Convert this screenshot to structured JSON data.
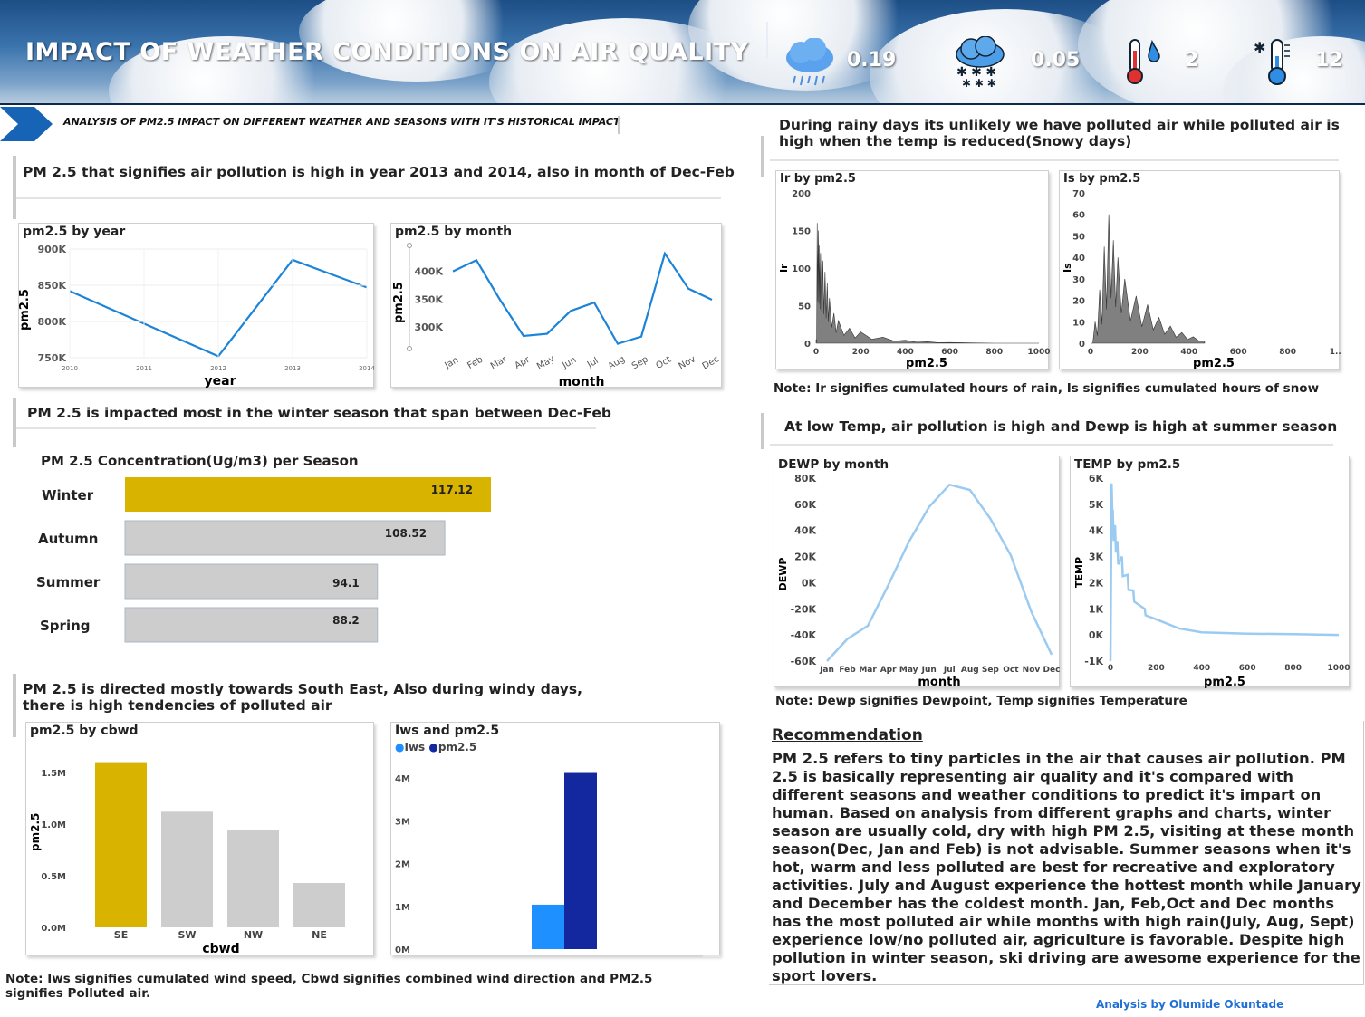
{
  "header": {
    "title": "IMPACT OF WEATHER CONDITIONS ON AIR QUALITY",
    "kpis": [
      {
        "icon": "rain-cloud-icon",
        "value": "0.19"
      },
      {
        "icon": "snow-cloud-icon",
        "value": "0.05"
      },
      {
        "icon": "thermometer-humidity-icon",
        "value": "2"
      },
      {
        "icon": "thermometer-cold-icon",
        "value": "12"
      }
    ]
  },
  "subtitle": "ANALYSIS OF PM2.5 IMPACT ON DIFFERENT WEATHER AND SEASONS WITH IT'S HISTORICAL IMPACT",
  "headings": {
    "year_month": "PM 2.5 that signifies air pollution is high in year 2013 and 2014, also in month of Dec-Feb",
    "season": "PM 2.5 is impacted most in the winter season that span between Dec-Feb",
    "wind": "PM 2.5  is directed mostly towards South East, Also during windy days, there is high tendencies of polluted air",
    "rain_snow": "During rainy days its unlikely we have polluted air while polluted air is high when the temp is reduced(Snowy days)",
    "temp": "At low Temp, air pollution is high and Dewp is high at summer season"
  },
  "notes": {
    "ir_is": "Note: Ir signifies cumulated hours of rain, Is signifies cumulated hours of snow",
    "dewp_temp": "Note: Dewp signifies Dewpoint,  Temp signifies Temperature",
    "iws_cbwd": "Note: Iws signifies cumulated wind speed, Cbwd signifies combined wind direction and PM2.5 signifies Polluted air."
  },
  "recommendation": {
    "title": "Recommendation",
    "text": "PM 2.5 refers to tiny particles in the air that causes air pollution. PM 2.5 is basically representing air quality and it's compared with different seasons and weather conditions to predict it's impart on human. Based on analysis from different graphs and charts, winter season  are usually cold, dry with high PM 2.5, visiting at these month season(Dec, Jan and Feb) is not advisable. Summer seasons when it's hot, warm and less polluted are best for recreative and exploratory activities. July and August experience the hottest month while January and December has the coldest month. Jan, Feb,Oct and Dec months has the most polluted air while months with high rain(July, Aug, Sept) experience low/no polluted air, agriculture is favorable. Despite high pollution in winter season, ski driving are awesome experience for the sport lovers."
  },
  "author": "Analysis by Olumide Okuntade",
  "colors": {
    "line": "#1b84d8",
    "winter": "#d8b300",
    "gray_bar": "#cdcdcd",
    "iws": "#1e90ff",
    "pm25_navy": "#13279e",
    "light_blue": "#9ccbf2",
    "dark_area": "#555555"
  },
  "chart_data": [
    {
      "id": "pm_by_year",
      "type": "line",
      "title": "pm2.5 by year",
      "xlabel": "year",
      "ylabel": "pm2.5",
      "x": [
        "2010",
        "2011",
        "2012",
        "2013",
        "2014"
      ],
      "values": [
        842000,
        797000,
        752000,
        885000,
        847000
      ],
      "yticks": [
        "750K",
        "800K",
        "850K",
        "900K"
      ],
      "ylim": [
        750000,
        900000
      ]
    },
    {
      "id": "pm_by_month",
      "type": "line",
      "title": "pm2.5 by month",
      "xlabel": "month",
      "ylabel": "pm2.5",
      "x": [
        "Jan",
        "Feb",
        "Mar",
        "Apr",
        "May",
        "Jun",
        "Jul",
        "Aug",
        "Sep",
        "Oct",
        "Nov",
        "Dec"
      ],
      "values": [
        400000,
        420000,
        349000,
        284000,
        288000,
        329000,
        344000,
        270000,
        283000,
        432000,
        369000,
        349000
      ],
      "yticks": [
        "300K",
        "350K",
        "400K"
      ],
      "ylim": [
        258000,
        440000
      ]
    },
    {
      "id": "pm_by_season",
      "type": "bar",
      "orientation": "horizontal",
      "title": "PM 2.5 Concentration(Ug/m3) per Season",
      "categories": [
        "Winter",
        "Autumn",
        "Summer",
        "Spring"
      ],
      "values": [
        117.12,
        108.52,
        94.1,
        88.2
      ],
      "labels": [
        "117.12",
        "108.52",
        "94.1",
        "88.2"
      ]
    },
    {
      "id": "pm_by_cbwd",
      "type": "bar",
      "title": "pm2.5 by cbwd",
      "xlabel": "cbwd",
      "ylabel": "pm2.5",
      "categories": [
        "SE",
        "SW",
        "NW",
        "NE"
      ],
      "values": [
        1600000,
        1120000,
        940000,
        430000
      ],
      "yticks": [
        "0.0M",
        "0.5M",
        "1.0M",
        "1.5M"
      ],
      "ylim": [
        0,
        1500000
      ]
    },
    {
      "id": "iws_pm",
      "type": "bar",
      "title": "Iws and pm2.5",
      "series": [
        {
          "name": "Iws",
          "values": [
            1040000
          ]
        },
        {
          "name": "pm2.5",
          "values": [
            4120000
          ]
        }
      ],
      "yticks": [
        "0M",
        "1M",
        "2M",
        "3M",
        "4M"
      ],
      "ylim": [
        0,
        4000000
      ]
    },
    {
      "id": "ir_by_pm",
      "type": "area",
      "title": "Ir by pm2.5",
      "xlabel": "pm2.5",
      "ylabel": "Ir",
      "x": [
        0,
        5,
        10,
        15,
        20,
        30,
        40,
        50,
        60,
        80,
        100,
        150,
        200,
        300,
        400,
        500,
        600,
        800,
        1000
      ],
      "values": [
        5,
        160,
        150,
        130,
        120,
        110,
        95,
        80,
        60,
        40,
        30,
        20,
        15,
        8,
        4,
        2,
        1,
        0,
        0
      ],
      "xticks": [
        "0",
        "200",
        "400",
        "600",
        "800",
        "1000"
      ],
      "yticks": [
        "0",
        "50",
        "100",
        "150",
        "200"
      ],
      "ylim": [
        0,
        200
      ]
    },
    {
      "id": "is_by_pm",
      "type": "area",
      "title": "Is by pm2.5",
      "xlabel": "pm2.5",
      "ylabel": "Is",
      "x": [
        0,
        20,
        40,
        60,
        80,
        100,
        120,
        150,
        200,
        250,
        300,
        350,
        400,
        450,
        500
      ],
      "values": [
        0,
        10,
        25,
        45,
        60,
        48,
        40,
        30,
        22,
        18,
        12,
        8,
        5,
        3,
        1
      ],
      "xticks": [
        "0",
        "200",
        "400",
        "600",
        "800",
        "1..."
      ],
      "yticks": [
        "0",
        "10",
        "20",
        "30",
        "40",
        "50",
        "60",
        "70"
      ],
      "ylim": [
        0,
        70
      ]
    },
    {
      "id": "dewp_by_month",
      "type": "line",
      "title": "DEWP by month",
      "xlabel": "month",
      "ylabel": "DEWP",
      "x": [
        "Jan",
        "Feb",
        "Mar",
        "Apr",
        "May",
        "Jun",
        "Jul",
        "Aug",
        "Sep",
        "Oct",
        "Nov",
        "Dec"
      ],
      "values": [
        -60000,
        -43000,
        -33000,
        -2000,
        31000,
        58000,
        75000,
        71000,
        49000,
        21000,
        -22000,
        -55000
      ],
      "yticks": [
        "-60K",
        "-40K",
        "-20K",
        "0K",
        "20K",
        "40K",
        "60K",
        "80K"
      ],
      "ylim": [
        -60000,
        80000
      ]
    },
    {
      "id": "temp_by_pm",
      "type": "line",
      "title": "TEMP by pm2.5",
      "xlabel": "pm2.5",
      "ylabel": "TEMP",
      "x": [
        0,
        5,
        10,
        20,
        30,
        50,
        75,
        100,
        150,
        200,
        300,
        400,
        600,
        800,
        1000
      ],
      "values": [
        -1000,
        5800,
        4800,
        4200,
        3600,
        3000,
        2300,
        1700,
        1000,
        600,
        250,
        100,
        50,
        30,
        0
      ],
      "xticks": [
        "0",
        "200",
        "400",
        "600",
        "800",
        "1000"
      ],
      "yticks": [
        "-1K",
        "0K",
        "1K",
        "2K",
        "3K",
        "4K",
        "5K",
        "6K"
      ],
      "ylim": [
        -1000,
        6000
      ]
    }
  ]
}
